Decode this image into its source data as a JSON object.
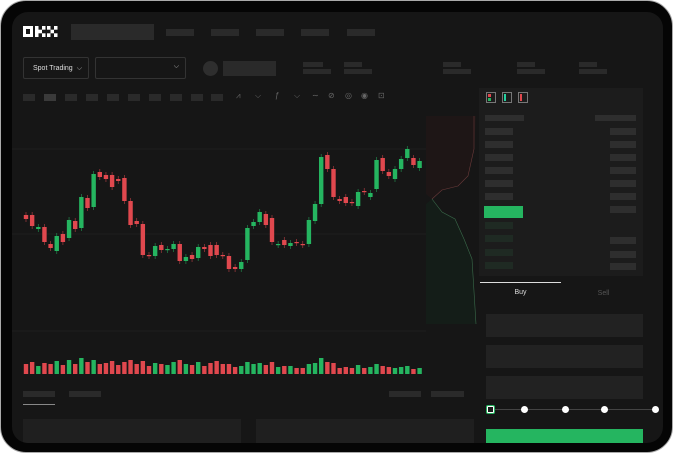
{
  "header": {
    "logo": "OKX"
  },
  "market": {
    "mode_label": "Spot Trading",
    "pair_selector": ""
  },
  "order_form": {
    "tabs": [
      {
        "label": "Buy",
        "active": true
      },
      {
        "label": "Sell",
        "active": false
      }
    ],
    "slider_percent": 0,
    "submit_color": "#25b560"
  },
  "colors": {
    "up": "#25b560",
    "down": "#e0484e",
    "background": "#161616",
    "panel": "#1c1c1c"
  },
  "chart_data": {
    "type": "candlestick",
    "candles": [
      [
        97,
        93
      ],
      [
        97,
        86
      ],
      [
        83,
        85
      ],
      [
        85,
        70
      ],
      [
        68,
        64
      ],
      [
        61,
        76
      ],
      [
        78,
        70
      ],
      [
        74,
        92
      ],
      [
        91,
        83
      ],
      [
        84,
        115
      ],
      [
        114,
        104
      ],
      [
        105,
        138
      ],
      [
        140,
        135
      ],
      [
        137,
        133
      ],
      [
        137,
        125
      ],
      [
        133,
        131
      ],
      [
        134,
        111
      ],
      [
        111,
        87
      ],
      [
        91,
        88
      ],
      [
        88,
        57
      ],
      [
        57,
        56
      ],
      [
        56,
        66
      ],
      [
        67,
        62
      ],
      [
        62,
        63
      ],
      [
        63,
        68
      ],
      [
        68,
        51
      ],
      [
        51,
        55
      ],
      [
        57,
        53
      ],
      [
        54,
        65
      ],
      [
        65,
        63
      ],
      [
        67,
        56
      ],
      [
        67,
        57
      ],
      [
        57,
        56
      ],
      [
        56,
        43
      ],
      [
        45,
        43
      ],
      [
        43,
        50
      ],
      [
        52,
        84
      ],
      [
        86,
        90
      ],
      [
        90,
        100
      ],
      [
        98,
        87
      ],
      [
        94,
        70
      ],
      [
        67,
        68
      ],
      [
        72,
        67
      ],
      [
        66,
        69
      ],
      [
        70,
        69
      ],
      [
        68,
        67
      ],
      [
        68,
        92
      ],
      [
        91,
        108
      ],
      [
        108,
        155
      ],
      [
        157,
        143
      ],
      [
        143,
        115
      ],
      [
        113,
        111
      ],
      [
        115,
        109
      ],
      [
        110,
        109
      ],
      [
        106,
        120
      ],
      [
        121,
        120
      ],
      [
        115,
        119
      ],
      [
        123,
        152
      ],
      [
        154,
        141
      ],
      [
        140,
        136
      ],
      [
        133,
        143
      ],
      [
        143,
        153
      ],
      [
        154,
        163
      ],
      [
        154,
        147
      ],
      [
        144,
        151
      ]
    ],
    "volumes": [
      12,
      14,
      10,
      13,
      12,
      15,
      11,
      16,
      12,
      18,
      14,
      16,
      12,
      13,
      15,
      11,
      14,
      16,
      12,
      15,
      10,
      13,
      12,
      11,
      14,
      16,
      12,
      11,
      14,
      10,
      13,
      15,
      12,
      12,
      9,
      10,
      14,
      12,
      13,
      11,
      14,
      9,
      10,
      10,
      8,
      8,
      12,
      13,
      18,
      14,
      13,
      8,
      9,
      8,
      11,
      8,
      9,
      12,
      10,
      9,
      8,
      9,
      10,
      7,
      8
    ],
    "grid": true
  }
}
